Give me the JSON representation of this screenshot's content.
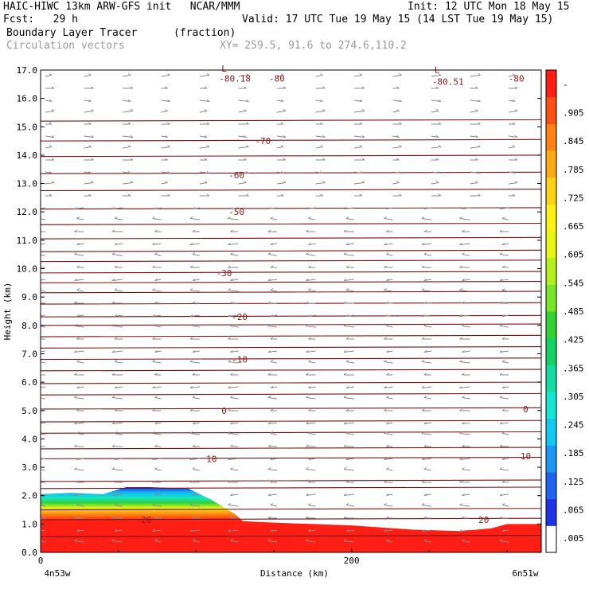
{
  "header": {
    "line1_left": "HAIC-HIWC 13km ARW-GFS init   NCAR/MMM",
    "line1_right": "Init: 12 UTC Mon 18 May 15",
    "line2_left": "Fcst:   29 h",
    "line2_right": "Valid: 17 UTC Tue 19 May 15 (14 LST Tue 19 May 15)",
    "field_name": "Boundary Layer Tracer",
    "field_units": "(fraction)",
    "vectors_label": "Circulation vectors",
    "xy_label": "XY= 259.5, 91.6 to 274.6,110.2"
  },
  "chart_data": {
    "type": "heatmap",
    "ylabel": "Height (km)",
    "xlabel": "Distance (km)",
    "ylim": [
      0,
      17
    ],
    "xlim": [
      0,
      322
    ],
    "y_ticks": [
      "0.0",
      "1.0",
      "2.0",
      "3.0",
      "4.0",
      "5.0",
      "6.0",
      "7.0",
      "8.0",
      "9.0",
      "10.0",
      "11.0",
      "12.0",
      "13.0",
      "14.0",
      "15.0",
      "16.0",
      "17.0"
    ],
    "x_ticks": [
      {
        "value": 0,
        "label": "0"
      },
      {
        "value": 200,
        "label": "200"
      }
    ],
    "x_end_labels": {
      "left": "4n53w",
      "right": "6n51w"
    },
    "colorbar": {
      "labels": [
        ".005",
        ".065",
        ".125",
        ".185",
        ".245",
        ".305",
        ".365",
        ".425",
        ".485",
        ".545",
        ".605",
        ".665",
        ".725",
        ".785",
        ".845",
        ".905",
        "-"
      ],
      "colors": [
        "#ffffff",
        "#1e32e6",
        "#1e64f0",
        "#1e96f5",
        "#14c8f0",
        "#14e6d2",
        "#14dca0",
        "#14d264",
        "#32d232",
        "#78e628",
        "#b4f01e",
        "#e6f514",
        "#fff014",
        "#ffd214",
        "#ffaa14",
        "#ff8214",
        "#ff5014",
        "#ff1e14"
      ]
    },
    "tracer_top_km": [
      {
        "x": 0,
        "y": 2.05
      },
      {
        "x": 20,
        "y": 2.1
      },
      {
        "x": 40,
        "y": 2.05
      },
      {
        "x": 55,
        "y": 2.3
      },
      {
        "x": 70,
        "y": 2.3
      },
      {
        "x": 95,
        "y": 2.25
      },
      {
        "x": 110,
        "y": 1.85
      },
      {
        "x": 125,
        "y": 1.35
      },
      {
        "x": 130,
        "y": 1.1
      },
      {
        "x": 150,
        "y": 1.05
      },
      {
        "x": 200,
        "y": 0.95
      },
      {
        "x": 240,
        "y": 0.8
      },
      {
        "x": 270,
        "y": 0.75
      },
      {
        "x": 290,
        "y": 0.85
      },
      {
        "x": 300,
        "y": 1.0
      },
      {
        "x": 322,
        "y": 1.0
      }
    ],
    "temperature_isotherm_labels": [
      {
        "value": "-80.18",
        "x": 125,
        "y": 16.7
      },
      {
        "value": "-80",
        "x": 152,
        "y": 16.7
      },
      {
        "value": "-80.51",
        "x": 262,
        "y": 16.6
      },
      {
        "value": "-80",
        "x": 306,
        "y": 16.7
      },
      {
        "value": "-70",
        "x": 143,
        "y": 14.5
      },
      {
        "value": "-60",
        "x": 126,
        "y": 13.3
      },
      {
        "value": "-50",
        "x": 126,
        "y": 12.0
      },
      {
        "value": "-30",
        "x": 118,
        "y": 9.85
      },
      {
        "value": "-20",
        "x": 128,
        "y": 8.3
      },
      {
        "value": "-10",
        "x": 128,
        "y": 6.8
      },
      {
        "value": "0",
        "x": 118,
        "y": 5.0
      },
      {
        "value": "0",
        "x": 312,
        "y": 5.05
      },
      {
        "value": "10",
        "x": 110,
        "y": 3.3
      },
      {
        "value": "10",
        "x": 312,
        "y": 3.4
      },
      {
        "value": "20",
        "x": 68,
        "y": 1.15
      },
      {
        "value": "20",
        "x": 285,
        "y": 1.15
      }
    ],
    "low_markers": [
      {
        "label": "L",
        "x": 118,
        "y": 16.95
      },
      {
        "label": "L",
        "x": 255,
        "y": 16.9
      }
    ],
    "isotherm_heights_km": [
      0.55,
      1.15,
      1.5,
      2.25,
      2.5,
      3.3,
      3.65,
      4.2,
      4.6,
      5.05,
      5.55,
      5.95,
      6.4,
      6.8,
      7.2,
      7.6,
      8.0,
      8.3,
      8.75,
      9.15,
      9.5,
      9.85,
      10.25,
      10.6,
      11.05,
      11.55,
      12.1,
      12.75,
      13.35,
      13.95,
      14.5,
      15.2
    ]
  }
}
